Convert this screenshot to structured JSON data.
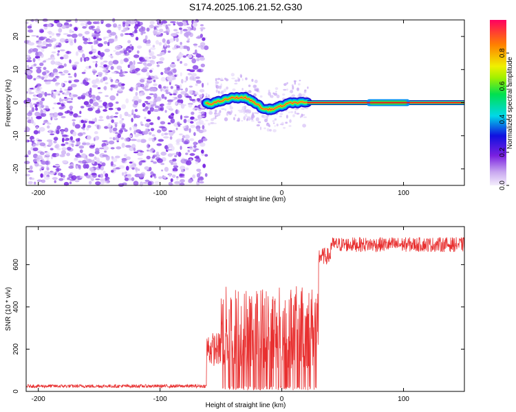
{
  "title": "S174.2025.106.21.52.G30",
  "chart_data": [
    {
      "type": "heatmap",
      "title": "S174.2025.106.21.52.G30",
      "xlabel": "Height of straight line (km)",
      "ylabel": "Frequency (Hz)",
      "xlim": [
        -210,
        150
      ],
      "ylim": [
        -25,
        25
      ],
      "xticks": [
        -200,
        -100,
        0,
        100
      ],
      "yticks": [
        -20,
        -10,
        0,
        10,
        20
      ],
      "noise_region_x": [
        -210,
        -62
      ],
      "signal_region_x": [
        -62,
        150
      ],
      "signal_frequency_track": [
        {
          "x": -60,
          "y": -0.5
        },
        {
          "x": -50,
          "y": 0.5
        },
        {
          "x": -40,
          "y": 1.5
        },
        {
          "x": -30,
          "y": 1.5
        },
        {
          "x": -22,
          "y": 0
        },
        {
          "x": -15,
          "y": -2
        },
        {
          "x": -8,
          "y": -2
        },
        {
          "x": 0,
          "y": -1
        },
        {
          "x": 8,
          "y": 0
        },
        {
          "x": 15,
          "y": 0
        },
        {
          "x": 21,
          "y": 0
        },
        {
          "x": 60,
          "y": 0
        },
        {
          "x": 100,
          "y": 0
        },
        {
          "x": 150,
          "y": 0
        }
      ],
      "grid": false
    },
    {
      "type": "line",
      "xlabel": "Height of straight line (km)",
      "ylabel": "SNR (10 * v/v)",
      "xlim": [
        -210,
        150
      ],
      "ylim": [
        0,
        780
      ],
      "xticks": [
        -200,
        -100,
        0,
        100
      ],
      "yticks": [
        0,
        200,
        400,
        600
      ],
      "series": [
        {
          "color": "#e83030",
          "segments": [
            {
              "x_from": -210,
              "x_to": -62,
              "level": 25,
              "spread": 8
            },
            {
              "x_from": -62,
              "x_to": -50,
              "level": 200,
              "spread": 80
            },
            {
              "x_from": -50,
              "x_to": 30,
              "level": 300,
              "spread": 200
            },
            {
              "x_from": 30,
              "x_to": 40,
              "level": 640,
              "spread": 40
            },
            {
              "x_from": 40,
              "x_to": 150,
              "level": 695,
              "spread": 35
            }
          ]
        }
      ],
      "grid": false
    }
  ],
  "colorbar": {
    "label": "Normalized spectral amplitude",
    "ticks": [
      "0.0",
      "0.2",
      "0.4",
      "0.6",
      "0.8"
    ],
    "range": [
      0,
      1
    ]
  }
}
